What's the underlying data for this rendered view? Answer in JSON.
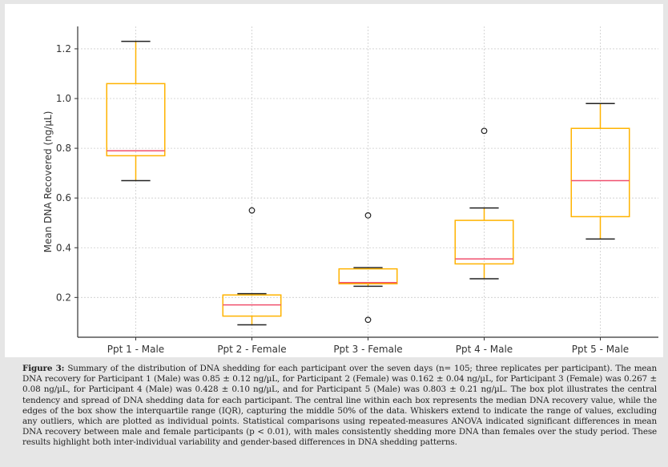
{
  "chart_data": {
    "type": "box",
    "title": "",
    "xlabel": "",
    "ylabel": "Mean DNA Recovered (ng/µL)",
    "ylim": [
      0.04,
      1.29
    ],
    "yticks": [
      0.2,
      0.4,
      0.6,
      0.8,
      1.0,
      1.2
    ],
    "ytick_labels": [
      "0.2",
      "0.4",
      "0.6",
      "0.8",
      "1.0",
      "1.2"
    ],
    "grid": true,
    "legend": "none",
    "colors": {
      "box": "#ffb300",
      "median": "#f0506e",
      "whisker_cap": "#222222",
      "outlier": "#222222",
      "grid": "#cccccc",
      "axis": "#333333"
    },
    "categories": [
      "Ppt 1 - Male",
      "Ppt 2 - Female",
      "Ppt 3 - Female",
      "Ppt 4 - Male",
      "Ppt 5 - Male"
    ],
    "boxes": [
      {
        "name": "Ppt 1 - Male",
        "whisker_low": 0.67,
        "q1": 0.77,
        "median": 0.79,
        "q3": 1.06,
        "whisker_high": 1.23,
        "outliers": []
      },
      {
        "name": "Ppt 2 - Female",
        "whisker_low": 0.09,
        "q1": 0.125,
        "median": 0.17,
        "q3": 0.21,
        "whisker_high": 0.215,
        "outliers": [
          0.55
        ]
      },
      {
        "name": "Ppt 3 - Female",
        "whisker_low": 0.245,
        "q1": 0.255,
        "median": 0.26,
        "q3": 0.315,
        "whisker_high": 0.32,
        "outliers": [
          0.53,
          0.11
        ]
      },
      {
        "name": "Ppt 4 - Male",
        "whisker_low": 0.275,
        "q1": 0.335,
        "median": 0.355,
        "q3": 0.51,
        "whisker_high": 0.56,
        "outliers": [
          0.87
        ]
      },
      {
        "name": "Ppt 5 - Male",
        "whisker_low": 0.435,
        "q1": 0.525,
        "median": 0.67,
        "q3": 0.88,
        "whisker_high": 0.98,
        "outliers": []
      }
    ]
  },
  "caption": {
    "label": "Figure 3:",
    "text": " Summary of the distribution of DNA shedding for each participant over the seven days (n= 105; three replicates per participant). The mean DNA recovery for Participant 1 (Male) was 0.85 ± 0.12 ng/µL, for Participant 2 (Female) was 0.162 ± 0.04 ng/µL, for Participant 3 (Female) was 0.267 ± 0.08 ng/µL, for Participant 4 (Male) was 0.428 ± 0.10 ng/µL, and for Participant 5 (Male) was 0.803 ± 0.21 ng/µL. The box plot illustrates the central tendency and spread of DNA shedding data for each participant. The central line within each box represents the median DNA recovery value, while the edges of the box show the interquartile range (IQR), capturing the middle 50% of the data. Whiskers extend to indicate the range of values, excluding any outliers, which are plotted as individual points. Statistical comparisons using repeated-measures ANOVA indicated significant differences in mean DNA recovery between male and female participants (p < 0.01), with males consistently shedding more DNA than females over the study period. These results highlight both inter-individual variability and gender-based differences in DNA shedding patterns."
  }
}
